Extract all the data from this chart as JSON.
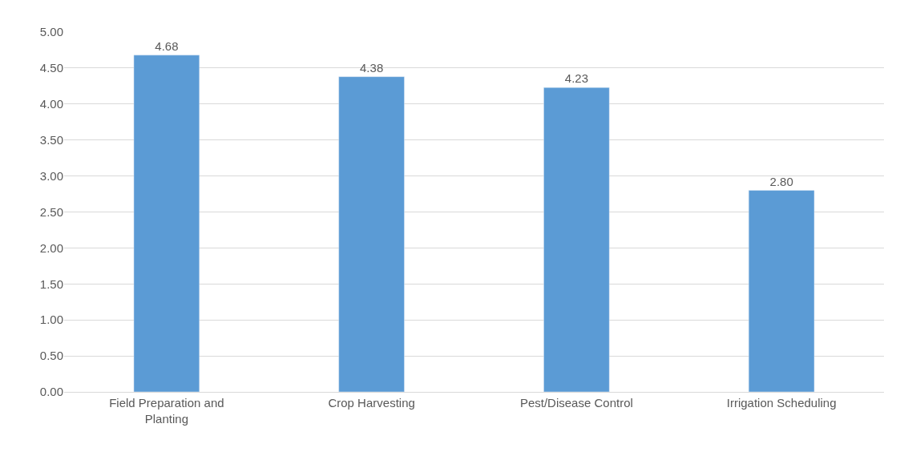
{
  "chart_data": {
    "type": "bar",
    "categories": [
      "Field Preparation and Planting",
      "Crop Harvesting",
      "Pest/Disease Control",
      "Irrigation Scheduling"
    ],
    "values": [
      4.68,
      4.38,
      4.23,
      2.8
    ],
    "value_labels": [
      "4.68",
      "4.38",
      "4.23",
      "2.80"
    ],
    "color": "#5b9bd5",
    "ylim": [
      0,
      5
    ],
    "yticks": [
      {
        "value": 0,
        "label": "0.00"
      },
      {
        "value": 0.5,
        "label": "0.50"
      },
      {
        "value": 1,
        "label": "1.00"
      },
      {
        "value": 1.5,
        "label": "1.50"
      },
      {
        "value": 2,
        "label": "2.00"
      },
      {
        "value": 2.5,
        "label": "2.50"
      },
      {
        "value": 3,
        "label": "3.00"
      },
      {
        "value": 3.5,
        "label": "3.50"
      },
      {
        "value": 4,
        "label": "4.00"
      },
      {
        "value": 4.5,
        "label": "4.50"
      },
      {
        "value": 5,
        "label": "5.00"
      }
    ],
    "grid": "y"
  }
}
